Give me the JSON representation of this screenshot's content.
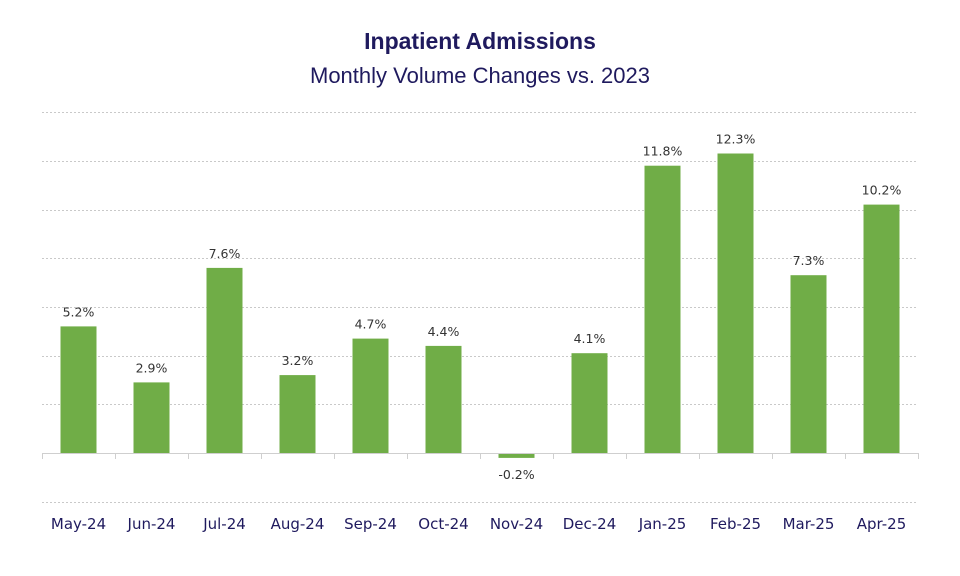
{
  "chart_data": {
    "type": "bar",
    "title": "Inpatient Admissions",
    "subtitle": "Monthly Volume Changes vs. 2023",
    "categories": [
      "May-24",
      "Jun-24",
      "Jul-24",
      "Aug-24",
      "Sep-24",
      "Oct-24",
      "Nov-24",
      "Dec-24",
      "Jan-25",
      "Feb-25",
      "Mar-25",
      "Apr-25"
    ],
    "values": [
      5.2,
      2.9,
      7.6,
      3.2,
      4.7,
      4.4,
      -0.2,
      4.1,
      11.8,
      12.3,
      7.3,
      10.2
    ],
    "labels": [
      "5.2%",
      "2.9%",
      "7.6%",
      "3.2%",
      "4.7%",
      "4.4%",
      "-0.2%",
      "4.1%",
      "11.8%",
      "12.3%",
      "7.3%",
      "10.2%"
    ],
    "ylim": [
      -2,
      14
    ],
    "gridlines": [
      -2,
      2,
      4,
      6,
      8,
      10,
      12,
      14
    ],
    "xlabel": "",
    "ylabel": "",
    "legend": "none",
    "bar_color": "#70ad47",
    "title_color": "#1f1a5e"
  }
}
